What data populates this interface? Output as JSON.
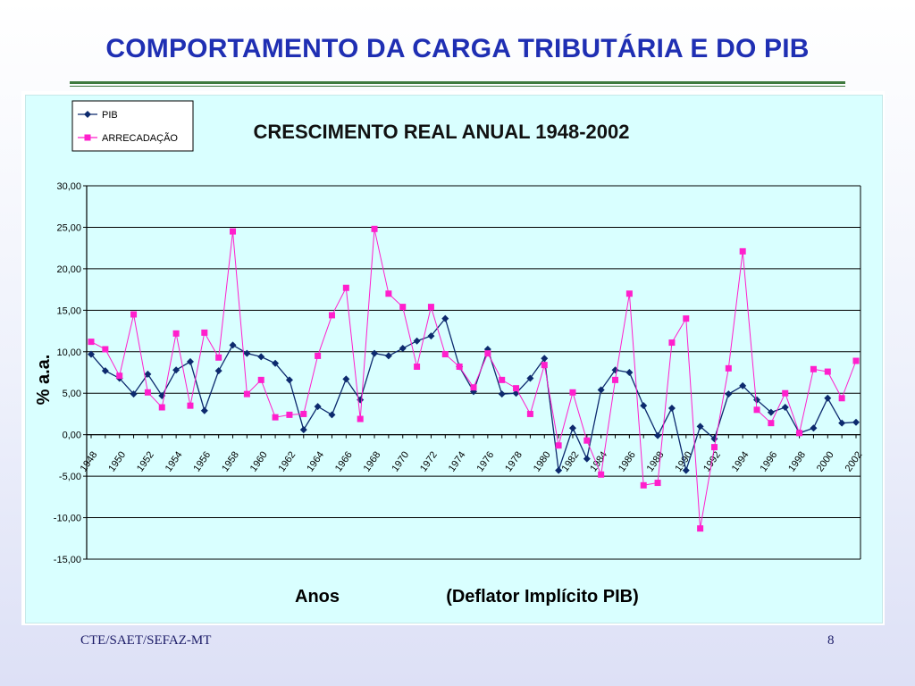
{
  "slide": {
    "title": "COMPORTAMENTO DA CARGA TRIBUTÁRIA E DO PIB",
    "footer_left": "CTE/SAET/SEFAZ-MT",
    "page_number": "8"
  },
  "chart_data": {
    "type": "line",
    "title": "CRESCIMENTO REAL ANUAL 1948-2002",
    "ylabel": "% a.a.",
    "xlabel": "Anos",
    "xlabel_note": "(Deflator Implícito PIB)",
    "ylim": [
      -15,
      30
    ],
    "yticks": [
      "30,00",
      "25,00",
      "20,00",
      "15,00",
      "10,00",
      "5,00",
      "0,00",
      "-5,00",
      "-10,00",
      "-15,00"
    ],
    "ytick_values": [
      30,
      25,
      20,
      15,
      10,
      5,
      0,
      -5,
      -10,
      -15
    ],
    "grid": true,
    "legend_position": "top-left",
    "x": [
      1948,
      1949,
      1950,
      1951,
      1952,
      1953,
      1954,
      1955,
      1956,
      1957,
      1958,
      1959,
      1960,
      1961,
      1962,
      1963,
      1964,
      1965,
      1966,
      1967,
      1968,
      1969,
      1970,
      1971,
      1972,
      1973,
      1974,
      1975,
      1976,
      1977,
      1978,
      1979,
      1980,
      1981,
      1982,
      1983,
      1984,
      1985,
      1986,
      1987,
      1988,
      1989,
      1990,
      1991,
      1992,
      1993,
      1994,
      1995,
      1996,
      1997,
      1998,
      1999,
      2000,
      2001,
      2002
    ],
    "xtick_labels": [
      "1948",
      "1950",
      "1952",
      "1954",
      "1956",
      "1958",
      "1960",
      "1962",
      "1964",
      "1966",
      "1968",
      "1970",
      "1972",
      "1974",
      "1976",
      "1978",
      "1980",
      "1982",
      "1984",
      "1986",
      "1988",
      "1990",
      "1992",
      "1994",
      "1996",
      "1998",
      "2000",
      "2002"
    ],
    "series": [
      {
        "name": "PIB",
        "color": "#0d2a6e",
        "marker": "diamond",
        "values": [
          9.7,
          7.7,
          6.8,
          4.9,
          7.3,
          4.7,
          7.8,
          8.8,
          2.9,
          7.7,
          10.8,
          9.8,
          9.4,
          8.6,
          6.6,
          0.6,
          3.4,
          2.4,
          6.7,
          4.2,
          9.8,
          9.5,
          10.4,
          11.3,
          11.9,
          14.0,
          8.2,
          5.2,
          10.3,
          4.9,
          5.0,
          6.8,
          9.2,
          -4.3,
          0.8,
          -2.9,
          5.4,
          7.8,
          7.5,
          3.5,
          -0.1,
          3.2,
          -4.3,
          1.0,
          -0.5,
          4.9,
          5.9,
          4.2,
          2.7,
          3.3,
          0.2,
          0.8,
          4.4,
          1.4,
          1.5
        ]
      },
      {
        "name": "ARRECADAÇÃO",
        "color": "#ff1fcc",
        "marker": "square",
        "values": [
          11.2,
          10.3,
          7.1,
          14.5,
          5.1,
          3.3,
          12.2,
          3.5,
          12.3,
          9.3,
          24.5,
          4.9,
          6.6,
          2.1,
          2.4,
          2.5,
          9.5,
          14.4,
          17.7,
          1.9,
          24.8,
          17.0,
          15.4,
          8.2,
          15.4,
          9.7,
          8.2,
          5.7,
          9.8,
          6.6,
          5.6,
          2.5,
          8.4,
          -1.3,
          5.1,
          -0.7,
          -4.8,
          6.6,
          17.0,
          -6.1,
          -5.8,
          11.1,
          14.0,
          -11.3,
          -1.5,
          8.0,
          22.1,
          3.0,
          1.4,
          5.0,
          0.2,
          7.9,
          7.6,
          4.4,
          8.9
        ]
      }
    ]
  }
}
